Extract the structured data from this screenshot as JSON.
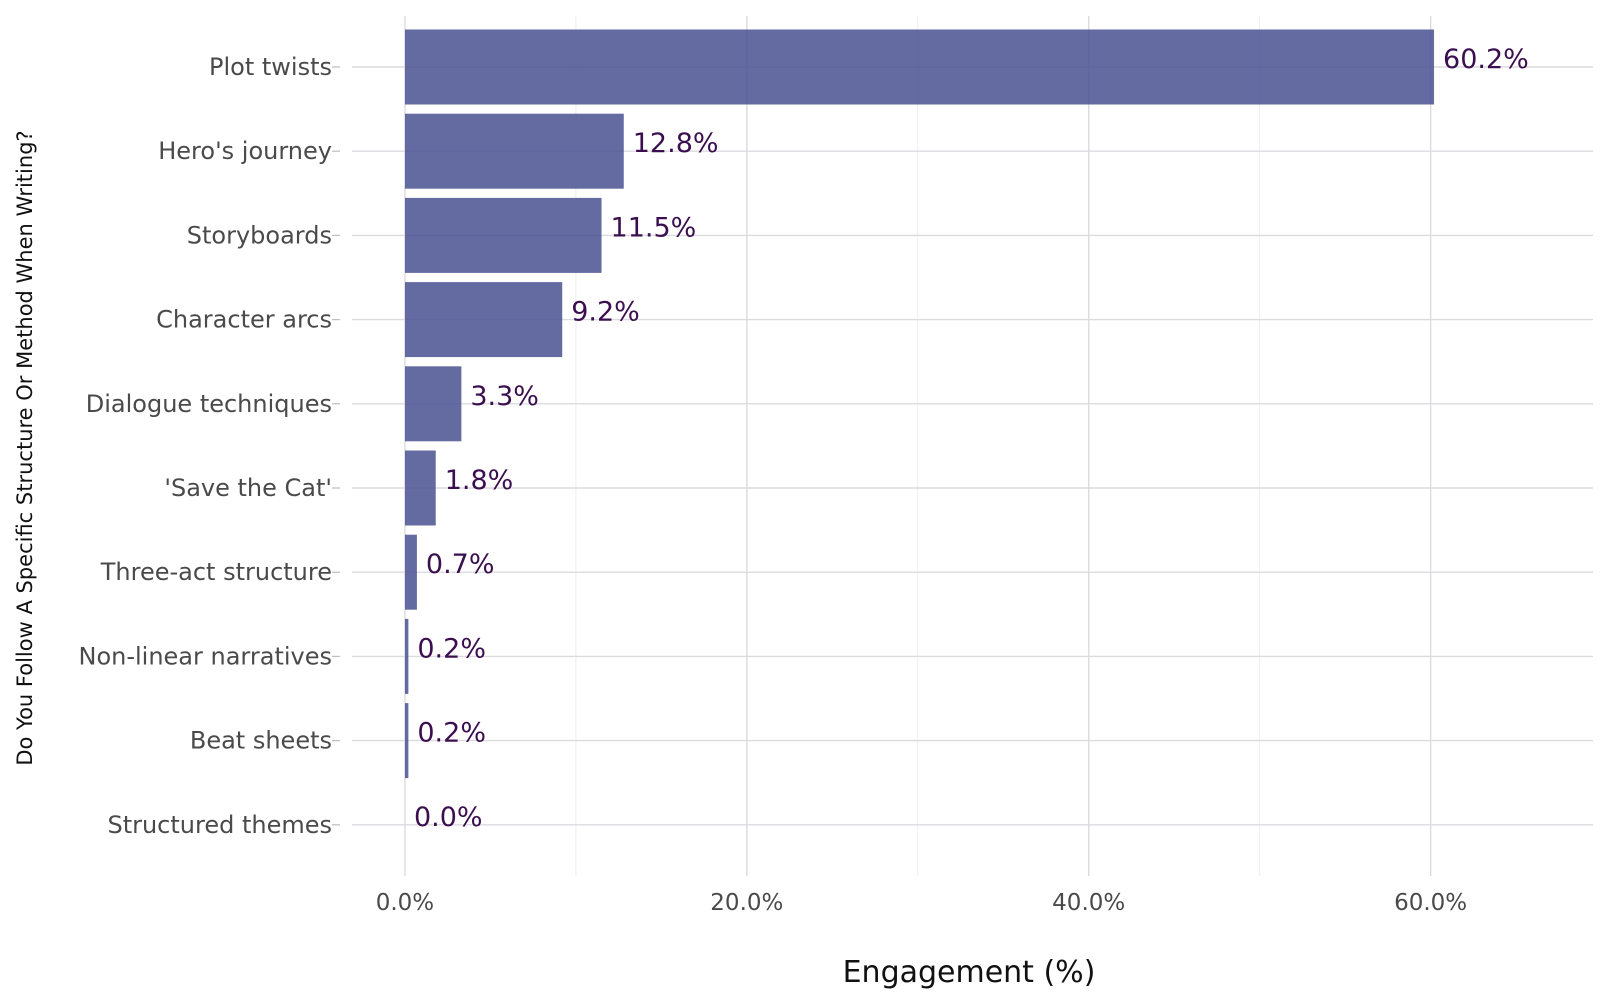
{
  "chart_data": {
    "type": "bar",
    "orientation": "horizontal",
    "categories": [
      "Plot twists",
      "Hero's journey",
      "Storyboards",
      "Character arcs",
      "Dialogue techniques",
      "'Save the Cat'",
      "Three-act structure",
      "Non-linear narratives",
      "Beat sheets",
      "Structured themes"
    ],
    "values": [
      60.2,
      12.8,
      11.5,
      9.2,
      3.3,
      1.8,
      0.7,
      0.2,
      0.2,
      0.0
    ],
    "value_labels": [
      "60.2%",
      "12.8%",
      "11.5%",
      "9.2%",
      "3.3%",
      "1.8%",
      "0.7%",
      "0.2%",
      "0.2%",
      "0.0%"
    ],
    "xlabel": "Engagement (%)",
    "ylabel": "Do You Follow A Specific Structure Or Method When Writing?",
    "x_ticks": [
      0,
      20,
      40,
      60
    ],
    "x_tick_labels": [
      "0.0%",
      "20.0%",
      "40.0%",
      "60.0%"
    ],
    "xlim": [
      -3.8,
      69.5
    ],
    "grid": true,
    "bar_color": "#4b5391",
    "label_color": "#3b0f4f"
  }
}
